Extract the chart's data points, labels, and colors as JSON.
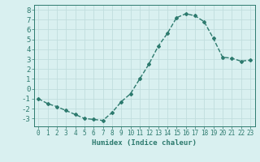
{
  "x": [
    0,
    1,
    2,
    3,
    4,
    5,
    6,
    7,
    8,
    9,
    10,
    11,
    12,
    13,
    14,
    15,
    16,
    17,
    18,
    19,
    20,
    21,
    22,
    23
  ],
  "y": [
    -1,
    -1.5,
    -1.8,
    -2.2,
    -2.6,
    -3.0,
    -3.1,
    -3.2,
    -2.4,
    -1.3,
    -0.5,
    1.0,
    2.5,
    4.3,
    5.6,
    7.2,
    7.6,
    7.4,
    6.8,
    5.1,
    3.2,
    3.1,
    2.8,
    2.9
  ],
  "line_color": "#2d7a6e",
  "bg_color": "#d9f0f0",
  "grid_color": "#c0dede",
  "xlabel": "Humidex (Indice chaleur)",
  "ylim": [
    -3.8,
    8.5
  ],
  "xlim": [
    -0.5,
    23.5
  ],
  "yticks": [
    -3,
    -2,
    -1,
    0,
    1,
    2,
    3,
    4,
    5,
    6,
    7,
    8
  ],
  "xticks": [
    0,
    1,
    2,
    3,
    4,
    5,
    6,
    7,
    8,
    9,
    10,
    11,
    12,
    13,
    14,
    15,
    16,
    17,
    18,
    19,
    20,
    21,
    22,
    23
  ],
  "tick_color": "#2d7a6e",
  "xlabel_fontsize": 6.5,
  "ytick_fontsize": 6.5,
  "xtick_fontsize": 5.5,
  "marker": "D",
  "marker_size": 2.0,
  "line_width": 1.0
}
